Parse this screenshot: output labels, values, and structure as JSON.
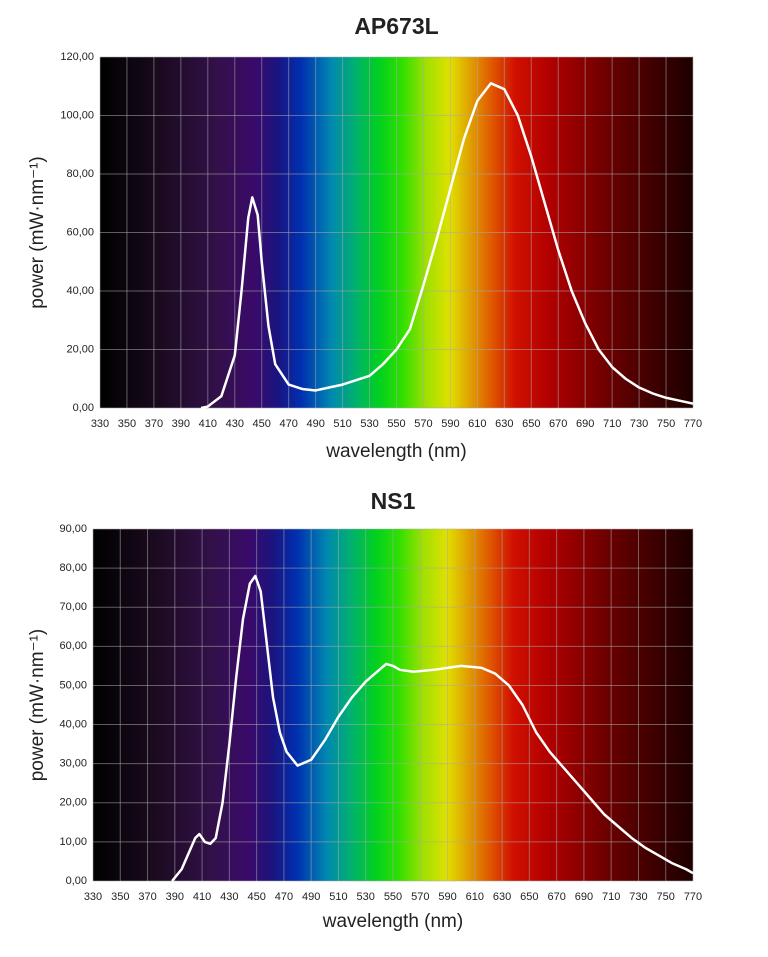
{
  "chart_data": [
    {
      "type": "line",
      "title": "AP673L",
      "xlabel": "wavelength (nm)",
      "ylabel": "power (mW·nm⁻¹)",
      "x": [
        405,
        410,
        420,
        430,
        435,
        440,
        443,
        447,
        450,
        455,
        460,
        470,
        480,
        490,
        500,
        510,
        520,
        530,
        540,
        550,
        560,
        570,
        580,
        590,
        600,
        610,
        620,
        630,
        640,
        650,
        660,
        670,
        680,
        690,
        700,
        710,
        720,
        730,
        740,
        750,
        760,
        770
      ],
      "values": [
        0,
        0.5,
        4,
        18,
        40,
        65,
        72,
        66,
        50,
        28,
        15,
        8,
        6.5,
        6,
        7,
        8,
        9.5,
        11,
        15,
        20,
        27,
        42,
        58,
        75,
        92,
        105,
        111,
        109,
        100,
        86,
        70,
        54,
        40,
        29,
        20,
        14,
        10,
        7,
        5,
        3.5,
        2.5,
        1.5
      ],
      "color": "#ffffff",
      "xlim": [
        330,
        770
      ],
      "xticks": [
        330,
        350,
        370,
        390,
        410,
        430,
        450,
        470,
        490,
        510,
        530,
        550,
        570,
        590,
        610,
        630,
        650,
        670,
        690,
        710,
        730,
        750,
        770
      ],
      "ylim": [
        0,
        120
      ],
      "yticks": [
        {
          "value": 0,
          "label": "0,00"
        },
        {
          "value": 20,
          "label": "20,00"
        },
        {
          "value": 40,
          "label": "40,00"
        },
        {
          "value": 60,
          "label": "60,00"
        },
        {
          "value": 80,
          "label": "80,00"
        },
        {
          "value": 100,
          "label": "100,00"
        },
        {
          "value": 120,
          "label": "120,00"
        }
      ],
      "grid": true
    },
    {
      "type": "line",
      "title": "NS1",
      "xlabel": "wavelength (nm)",
      "ylabel": "power (mW·nm⁻¹)",
      "x": [
        388,
        395,
        400,
        405,
        408,
        412,
        416,
        420,
        425,
        430,
        435,
        440,
        445,
        449,
        453,
        457,
        462,
        467,
        472,
        480,
        490,
        500,
        510,
        520,
        530,
        540,
        545,
        550,
        555,
        565,
        580,
        600,
        615,
        625,
        635,
        645,
        655,
        665,
        675,
        685,
        695,
        705,
        715,
        725,
        735,
        745,
        755,
        765,
        770
      ],
      "values": [
        0,
        3,
        7,
        11,
        12,
        10,
        9.5,
        11,
        20,
        35,
        52,
        67,
        76,
        78,
        74,
        62,
        47,
        38,
        33,
        29.5,
        31,
        36,
        42,
        47,
        51,
        54,
        55.5,
        55,
        54,
        53.5,
        54,
        55,
        54.5,
        53,
        50,
        45,
        38,
        33,
        29,
        25,
        21,
        17,
        14,
        11,
        8.5,
        6.5,
        4.5,
        3,
        2
      ],
      "color": "#ffffff",
      "xlim": [
        330,
        770
      ],
      "xticks": [
        330,
        350,
        370,
        390,
        410,
        430,
        450,
        470,
        490,
        510,
        530,
        550,
        570,
        590,
        610,
        630,
        650,
        670,
        690,
        710,
        730,
        750,
        770
      ],
      "ylim": [
        0,
        90
      ],
      "yticks": [
        {
          "value": 0,
          "label": "0,00"
        },
        {
          "value": 10,
          "label": "10,00"
        },
        {
          "value": 20,
          "label": "20,00"
        },
        {
          "value": 30,
          "label": "30,00"
        },
        {
          "value": 40,
          "label": "40,00"
        },
        {
          "value": 50,
          "label": "50,00"
        },
        {
          "value": 60,
          "label": "60,00"
        },
        {
          "value": 70,
          "label": "70,00"
        },
        {
          "value": 80,
          "label": "80,00"
        },
        {
          "value": 90,
          "label": "90,00"
        }
      ],
      "grid": true
    }
  ]
}
